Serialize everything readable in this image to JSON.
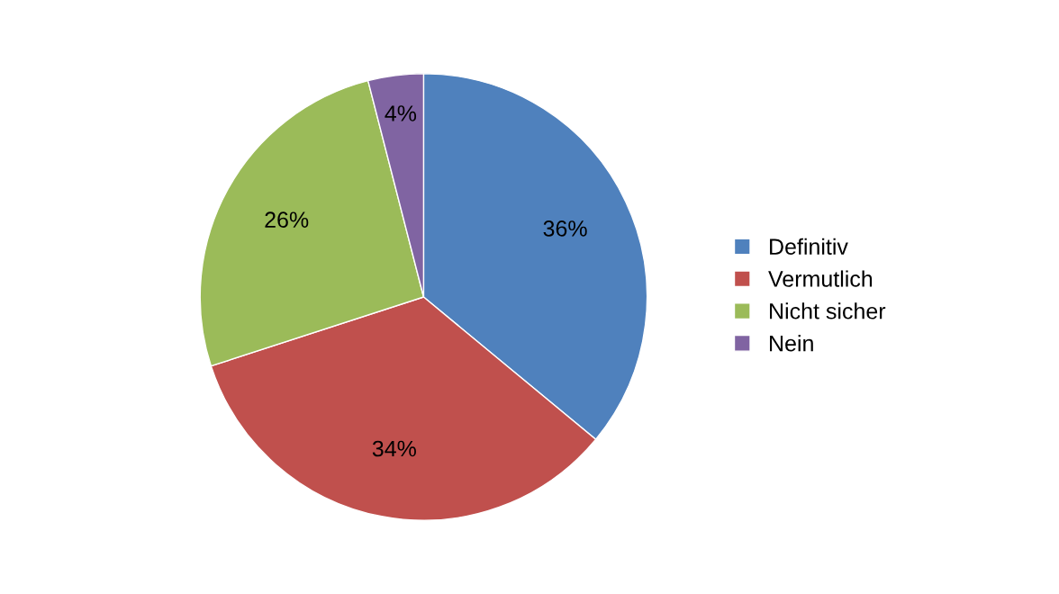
{
  "chart_data": {
    "type": "pie",
    "categories": [
      "Definitiv",
      "Vermutlich",
      "Nicht sicher",
      "Nein"
    ],
    "values": [
      36,
      34,
      26,
      4
    ],
    "value_labels": [
      "36%",
      "34%",
      "26%",
      "4%"
    ],
    "colors": [
      "#4f81bd",
      "#c0504d",
      "#9bbb59",
      "#8064a2"
    ],
    "legend": "right"
  }
}
